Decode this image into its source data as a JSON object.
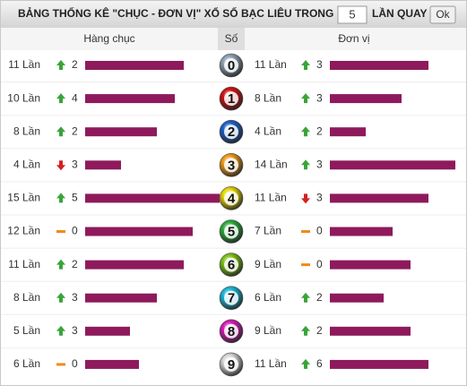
{
  "header": {
    "title": "BẢNG THỐNG KÊ \"CHỤC - ĐƠN VỊ\" XỔ SỐ BẠC LIÊU TRONG",
    "draws": 5,
    "suffix": "LẦN QUAY",
    "button": "Ok"
  },
  "table": {
    "columns": [
      "Hàng chục",
      "Số",
      "Đơn vị"
    ],
    "bar_color": "#8e1a5c",
    "rows": [
      {
        "digit": 0,
        "color": "#8fa3b3",
        "tens": {
          "count": {
            "value": 11,
            "label": "11 Lần"
          },
          "trend": "up",
          "change": 2
        },
        "units": {
          "count": {
            "value": 11,
            "label": "11 Lần"
          },
          "trend": "up",
          "change": 3
        }
      },
      {
        "digit": 1,
        "color": "#d01010",
        "tens": {
          "count": {
            "value": 10,
            "label": "10 Lần"
          },
          "trend": "up",
          "change": 4
        },
        "units": {
          "count": {
            "value": 8,
            "label": "8 Lần"
          },
          "trend": "up",
          "change": 3
        }
      },
      {
        "digit": 2,
        "color": "#1a5fc8",
        "tens": {
          "count": {
            "value": 8,
            "label": "8 Lần"
          },
          "trend": "up",
          "change": 2
        },
        "units": {
          "count": {
            "value": 4,
            "label": "4 Lần"
          },
          "trend": "up",
          "change": 2
        }
      },
      {
        "digit": 3,
        "color": "#f09a18",
        "tens": {
          "count": {
            "value": 4,
            "label": "4 Lần"
          },
          "trend": "down",
          "change": 3
        },
        "units": {
          "count": {
            "value": 14,
            "label": "14 Lần"
          },
          "trend": "up",
          "change": 3
        }
      },
      {
        "digit": 4,
        "color": "#e8d800",
        "tens": {
          "count": {
            "value": 15,
            "label": "15 Lần"
          },
          "trend": "up",
          "change": 5
        },
        "units": {
          "count": {
            "value": 11,
            "label": "11 Lần"
          },
          "trend": "down",
          "change": 3
        }
      },
      {
        "digit": 5,
        "color": "#2cae3a",
        "tens": {
          "count": {
            "value": 12,
            "label": "12 Lần"
          },
          "trend": "flat",
          "change": 0
        },
        "units": {
          "count": {
            "value": 7,
            "label": "7 Lần"
          },
          "trend": "flat",
          "change": 0
        }
      },
      {
        "digit": 6,
        "color": "#7cc414",
        "tens": {
          "count": {
            "value": 11,
            "label": "11 Lần"
          },
          "trend": "up",
          "change": 2
        },
        "units": {
          "count": {
            "value": 9,
            "label": "9 Lần"
          },
          "trend": "flat",
          "change": 0
        }
      },
      {
        "digit": 7,
        "color": "#18b8d8",
        "tens": {
          "count": {
            "value": 8,
            "label": "8 Lần"
          },
          "trend": "up",
          "change": 3
        },
        "units": {
          "count": {
            "value": 6,
            "label": "6 Lần"
          },
          "trend": "up",
          "change": 2
        }
      },
      {
        "digit": 8,
        "color": "#d818b8",
        "tens": {
          "count": {
            "value": 5,
            "label": "5 Lần"
          },
          "trend": "up",
          "change": 3
        },
        "units": {
          "count": {
            "value": 9,
            "label": "9 Lần"
          },
          "trend": "up",
          "change": 2
        }
      },
      {
        "digit": 9,
        "color": "#d8d8d8",
        "tens": {
          "count": {
            "value": 6,
            "label": "6 Lần"
          },
          "trend": "flat",
          "change": 0
        },
        "units": {
          "count": {
            "value": 11,
            "label": "11 Lần"
          },
          "trend": "up",
          "change": 6
        }
      }
    ]
  }
}
